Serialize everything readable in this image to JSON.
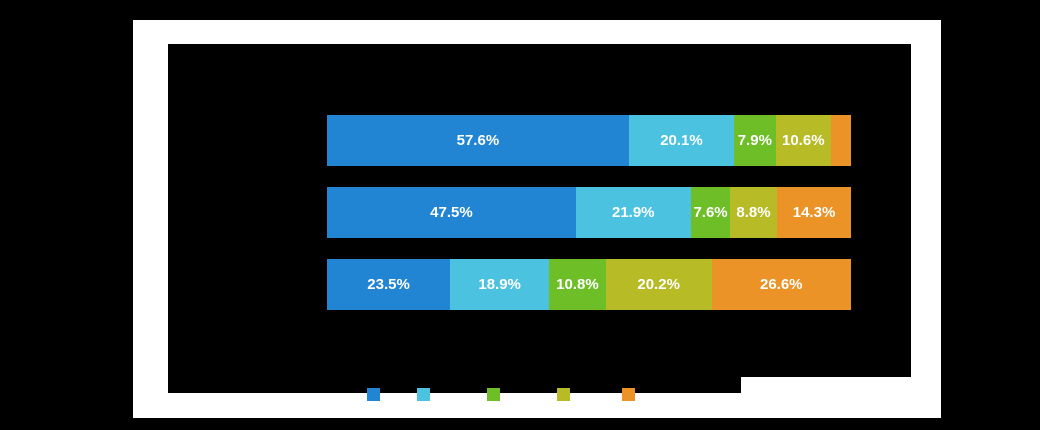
{
  "colors": {
    "page_bg": "#000000",
    "card_bg": "#ffffff",
    "plot_bg": "#000000",
    "data_label": "#ffffff"
  },
  "chart_data": {
    "type": "bar",
    "orientation": "horizontal",
    "stacked": true,
    "percent_stacked": true,
    "unit": "%",
    "xlim": [
      0,
      100
    ],
    "grid": false,
    "legend_position": "bottom",
    "categories": [
      "",
      "",
      ""
    ],
    "series": [
      {
        "color": "#2285d3",
        "values": [
          57.6,
          47.5,
          23.5
        ]
      },
      {
        "color": "#4bc2e0",
        "values": [
          20.1,
          21.9,
          18.9
        ]
      },
      {
        "color": "#6dbe27",
        "values": [
          7.9,
          7.6,
          10.8
        ]
      },
      {
        "color": "#b6bb26",
        "values": [
          10.6,
          8.8,
          20.2
        ]
      },
      {
        "color": "#eb9326",
        "values": [
          3.8,
          14.3,
          26.6
        ]
      }
    ],
    "data_labels": [
      [
        "57.6%",
        "20.1%",
        "7.9%",
        "10.6%",
        ""
      ],
      [
        "47.5%",
        "21.9%",
        "7.6%",
        "8.8%",
        "14.3%"
      ],
      [
        "23.5%",
        "18.9%",
        "10.8%",
        "20.2%",
        "26.6%"
      ]
    ]
  }
}
